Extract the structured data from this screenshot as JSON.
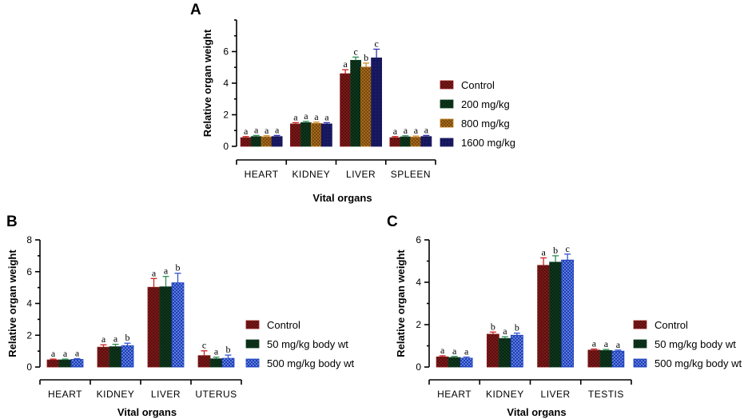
{
  "chart_data": [
    {
      "panel": "A",
      "type": "bar",
      "xlabel": "Vital organs",
      "ylabel": "Relative organ weight",
      "ylim": [
        0,
        8
      ],
      "yticks": [
        0,
        2,
        4,
        6
      ],
      "categories": [
        "HEART",
        "KIDNEY",
        "LIVER",
        "SPLEEN"
      ],
      "legend_position": "right",
      "series": [
        {
          "name": "Control",
          "color": "#8b1a1a",
          "error_color": "#cc2222",
          "pattern": "mesh",
          "values": [
            0.55,
            1.42,
            4.6,
            0.55
          ],
          "errors": [
            0.07,
            0.08,
            0.25,
            0.07
          ],
          "labels": [
            "a",
            "a",
            "a",
            "a"
          ]
        },
        {
          "name": "200 mg/kg",
          "color": "#0f3d1f",
          "error_color": "#2e8b57",
          "pattern": "mesh",
          "values": [
            0.62,
            1.5,
            5.45,
            0.6
          ],
          "errors": [
            0.07,
            0.08,
            0.2,
            0.07
          ],
          "labels": [
            "a",
            "a",
            "c",
            "a"
          ]
        },
        {
          "name": "800 mg/kg",
          "color": "#b8731a",
          "error_color": "#d18b2c",
          "pattern": "mesh",
          "values": [
            0.6,
            1.45,
            5.02,
            0.58
          ],
          "errors": [
            0.07,
            0.08,
            0.25,
            0.07
          ],
          "labels": [
            "a",
            "a",
            "b",
            "a"
          ]
        },
        {
          "name": "1600 mg/kg",
          "color": "#16165e",
          "error_color": "#3333aa",
          "pattern": "solid",
          "values": [
            0.62,
            1.42,
            5.6,
            0.62
          ],
          "errors": [
            0.07,
            0.08,
            0.55,
            0.07
          ],
          "labels": [
            "a",
            "a",
            "c",
            "a"
          ]
        }
      ]
    },
    {
      "panel": "B",
      "type": "bar",
      "xlabel": "Vital organs",
      "ylabel": "Relative organ weight",
      "ylim": [
        0,
        8
      ],
      "yticks": [
        0,
        2,
        4,
        6,
        8
      ],
      "categories": [
        "HEART",
        "KIDNEY",
        "LIVER",
        "UTERUS"
      ],
      "legend_position": "right",
      "series": [
        {
          "name": "Control",
          "color": "#8b1a1a",
          "error_color": "#cc2222",
          "pattern": "mesh",
          "values": [
            0.45,
            1.25,
            5.02,
            0.72
          ],
          "errors": [
            0.05,
            0.15,
            0.55,
            0.3
          ],
          "labels": [
            "a",
            "a",
            "a",
            "c"
          ]
        },
        {
          "name": "50 mg/kg body wt",
          "color": "#0f3d1f",
          "error_color": "#2e8b57",
          "pattern": "mesh",
          "values": [
            0.45,
            1.28,
            5.05,
            0.52
          ],
          "errors": [
            0.05,
            0.15,
            0.65,
            0.1
          ],
          "labels": [
            "a",
            "a",
            "a",
            "a"
          ]
        },
        {
          "name": "500 mg/kg body wt",
          "color": "#1a3fbf",
          "error_color": "#3355cc",
          "pattern": "dots",
          "values": [
            0.48,
            1.35,
            5.3,
            0.55
          ],
          "errors": [
            0.05,
            0.15,
            0.6,
            0.2
          ],
          "labels": [
            "a",
            "b",
            "b",
            "b"
          ]
        }
      ]
    },
    {
      "panel": "C",
      "type": "bar",
      "xlabel": "Vital organs",
      "ylabel": "Relative organ weight",
      "ylim": [
        0,
        6
      ],
      "yticks": [
        0,
        2,
        4,
        6
      ],
      "categories": [
        "HEART",
        "KIDNEY",
        "LIVER",
        "TESTIS"
      ],
      "legend_position": "right",
      "series": [
        {
          "name": "Control",
          "color": "#8b1a1a",
          "error_color": "#cc2222",
          "pattern": "mesh",
          "values": [
            0.48,
            1.55,
            4.8,
            0.8
          ],
          "errors": [
            0.05,
            0.1,
            0.35,
            0.05
          ],
          "labels": [
            "a",
            "b",
            "a",
            "a"
          ]
        },
        {
          "name": "50 mg/kg body wt",
          "color": "#0f3d1f",
          "error_color": "#2e8b57",
          "pattern": "mesh",
          "values": [
            0.45,
            1.35,
            4.95,
            0.78
          ],
          "errors": [
            0.05,
            0.08,
            0.3,
            0.05
          ],
          "labels": [
            "a",
            "a",
            "b",
            "a"
          ]
        },
        {
          "name": "500 mg/kg body wt",
          "color": "#1a3fbf",
          "error_color": "#3355cc",
          "pattern": "dots",
          "values": [
            0.42,
            1.5,
            5.05,
            0.75
          ],
          "errors": [
            0.05,
            0.1,
            0.28,
            0.05
          ],
          "labels": [
            "a",
            "b",
            "c",
            "a"
          ]
        }
      ]
    }
  ]
}
